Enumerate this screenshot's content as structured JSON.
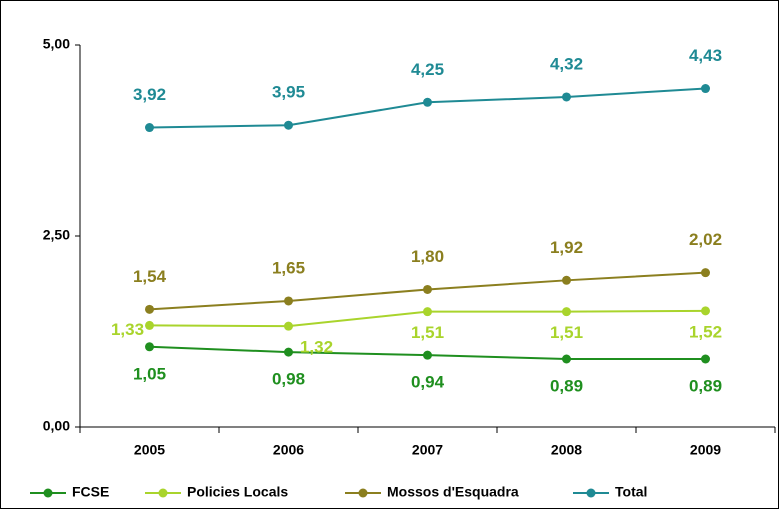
{
  "chart_data": {
    "type": "line",
    "categories": [
      "2005",
      "2006",
      "2007",
      "2008",
      "2009"
    ],
    "series": [
      {
        "name": "FCSE",
        "color": "#1f8f1f",
        "values": [
          1.05,
          0.98,
          0.94,
          0.89,
          0.89
        ],
        "value_labels": [
          "1,05",
          "0,98",
          "0,94",
          "0,89",
          "0,89"
        ]
      },
      {
        "name": "Policies Locals",
        "color": "#a9d42c",
        "values": [
          1.33,
          1.32,
          1.51,
          1.51,
          1.52
        ],
        "value_labels": [
          "1,33",
          "1,32",
          "1,51",
          "1,51",
          "1,52"
        ]
      },
      {
        "name": "Mossos d'Esquadra",
        "color": "#8b7f1f",
        "values": [
          1.54,
          1.65,
          1.8,
          1.92,
          2.02
        ],
        "value_labels": [
          "1,54",
          "1,65",
          "1,80",
          "1,92",
          "2,02"
        ]
      },
      {
        "name": "Total",
        "color": "#1f8a94",
        "values": [
          3.92,
          3.95,
          4.25,
          4.32,
          4.43
        ],
        "value_labels": [
          "3,92",
          "3,95",
          "4,25",
          "4,32",
          "4,43"
        ]
      }
    ],
    "ylim": [
      0,
      5
    ],
    "yticks": [
      {
        "value": 0,
        "label": "0,00"
      },
      {
        "value": 2.5,
        "label": "2,50"
      },
      {
        "value": 5,
        "label": "5,00"
      }
    ],
    "legend": "bottom"
  }
}
